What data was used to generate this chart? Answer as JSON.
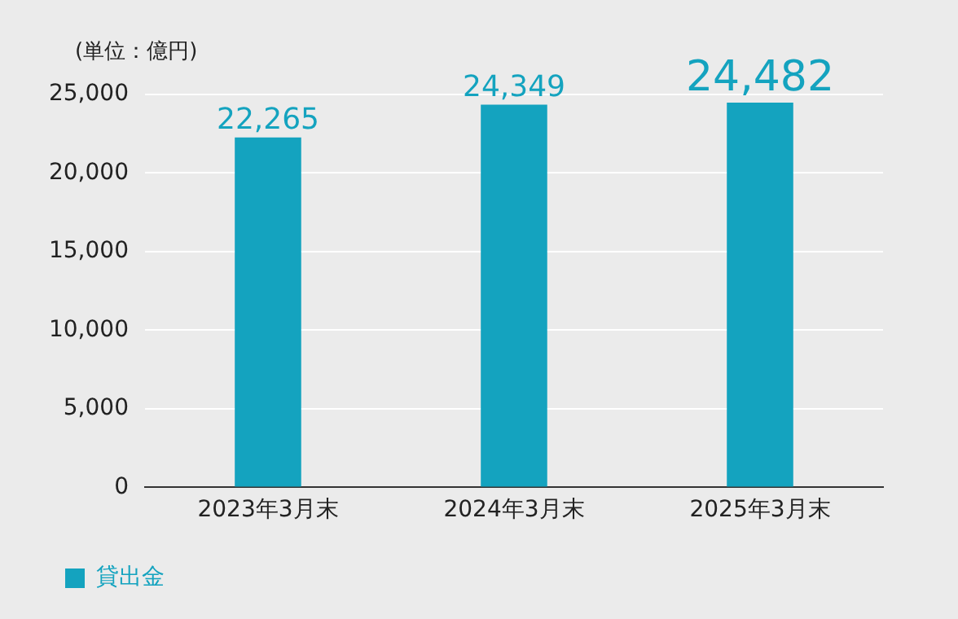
{
  "chart_data": {
    "type": "bar",
    "ylabel": "(単位：億円)",
    "categories": [
      "2023年3月末",
      "2024年3月末",
      "2025年3月末"
    ],
    "series": [
      {
        "name": "貸出金",
        "color": "#14a3bf",
        "values": [
          22265,
          24349,
          24482
        ],
        "value_labels": [
          "22,265",
          "24,349",
          "24,482"
        ]
      }
    ],
    "ylim": [
      0,
      25000
    ],
    "yticks": [
      {
        "value": 0,
        "label": "0"
      },
      {
        "value": 5000,
        "label": "5,000"
      },
      {
        "value": 10000,
        "label": "10,000"
      },
      {
        "value": 15000,
        "label": "15,000"
      },
      {
        "value": 20000,
        "label": "20,000"
      },
      {
        "value": 25000,
        "label": "25,000"
      }
    ],
    "grid": "y",
    "legend": "bottom left"
  }
}
